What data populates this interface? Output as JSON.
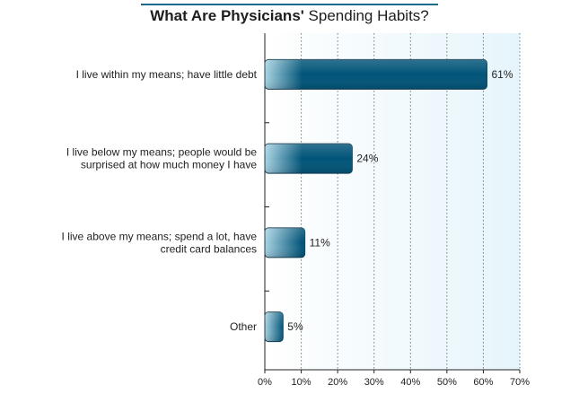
{
  "chart_data": {
    "type": "bar",
    "orientation": "horizontal",
    "title_bold": "What Are Physicians'",
    "title_regular": " Spending Habits?",
    "categories": [
      [
        "I live within my means; have little debt"
      ],
      [
        "I live below my means; people would be",
        "surprised at how much money I have"
      ],
      [
        "I live above my means; spend a lot, have",
        "credit card balances"
      ],
      [
        "Other"
      ]
    ],
    "values": [
      61,
      24,
      11,
      5
    ],
    "value_labels": [
      "61%",
      "24%",
      "11%",
      "5%"
    ],
    "xlim": [
      0,
      70
    ],
    "xticks": [
      0,
      10,
      20,
      30,
      40,
      50,
      60,
      70
    ],
    "xtick_labels": [
      "0%",
      "10%",
      "20%",
      "30%",
      "40%",
      "50%",
      "60%",
      "70%"
    ],
    "grid": true,
    "colors": {
      "bar_dark": "#015478",
      "bar_light": "#a8d4e4",
      "plot_bg_start": "#ffffff",
      "plot_bg_end": "#e6f5fb",
      "grid": "#777777",
      "title_rule": "#1a6a8c"
    }
  }
}
